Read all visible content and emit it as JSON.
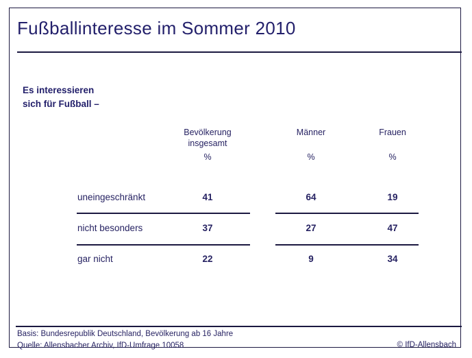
{
  "slide": {
    "title": "Fußballinteresse im Sommer 2010",
    "subtitle": "Es interessieren\nsich für Fußball –"
  },
  "table": {
    "columns": [
      {
        "label": "Bevölkerung\ninsgesamt",
        "unit": "%"
      },
      {
        "label": "Männer",
        "unit": "%"
      },
      {
        "label": "Frauen",
        "unit": "%"
      }
    ],
    "rows": [
      {
        "label": "uneingeschränkt",
        "values": [
          "41",
          "64",
          "19"
        ]
      },
      {
        "label": "nicht besonders",
        "values": [
          "37",
          "27",
          "47"
        ]
      },
      {
        "label": "gar nicht",
        "values": [
          "22",
          "9",
          "34"
        ]
      }
    ]
  },
  "footer": {
    "basis": "Basis: Bundesrepublik Deutschland, Bevölkerung ab 16 Jahre",
    "quelle": "Quelle: Allensbacher Archiv, IfD-Umfrage 10058",
    "copyright": "© IfD-Allensbach"
  },
  "colors": {
    "text": "#23206b",
    "line": "#1b1840",
    "background": "#ffffff"
  },
  "chart_data": {
    "type": "table",
    "title": "Fußballinteresse im Sommer 2010",
    "subtitle": "Es interessieren sich für Fußball –",
    "unit": "%",
    "categories": [
      "uneingeschränkt",
      "nicht besonders",
      "gar nicht"
    ],
    "series": [
      {
        "name": "Bevölkerung insgesamt",
        "values": [
          41,
          37,
          22
        ]
      },
      {
        "name": "Männer",
        "values": [
          64,
          27,
          9
        ]
      },
      {
        "name": "Frauen",
        "values": [
          19,
          47,
          34
        ]
      }
    ],
    "source": "Quelle: Allensbacher Archiv, IfD-Umfrage 10058",
    "basis": "Basis: Bundesrepublik Deutschland, Bevölkerung ab 16 Jahre"
  }
}
